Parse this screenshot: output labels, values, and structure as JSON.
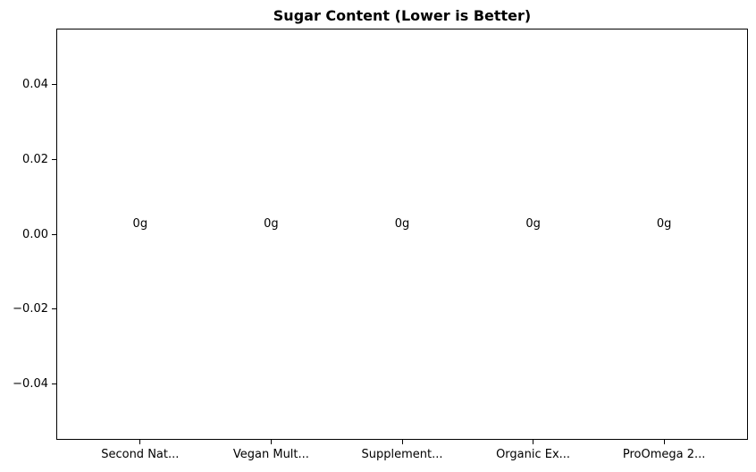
{
  "chart_data": {
    "type": "bar",
    "title": "Sugar Content (Lower is Better)",
    "categories": [
      "Second Nat...",
      "Vegan Mult...",
      "Supplement...",
      "Organic Ex...",
      "ProOmega 2..."
    ],
    "values": [
      0,
      0,
      0,
      0,
      0
    ],
    "bar_labels": [
      "0g",
      "0g",
      "0g",
      "0g",
      "0g"
    ],
    "xlabel": "",
    "ylabel": "",
    "xlim": [
      -0.64,
      4.64
    ],
    "ylim": [
      -0.055,
      0.055
    ],
    "yticks": [
      0.04,
      0.02,
      0.0,
      -0.02,
      -0.04
    ],
    "ytick_labels": [
      "0.04",
      "0.02",
      "0.00",
      "−0.02",
      "−0.04"
    ],
    "grid": false,
    "legend": null,
    "bar_width": 0.8
  },
  "colors": {
    "background": "#ffffff",
    "spine": "#000000",
    "text": "#000000"
  }
}
